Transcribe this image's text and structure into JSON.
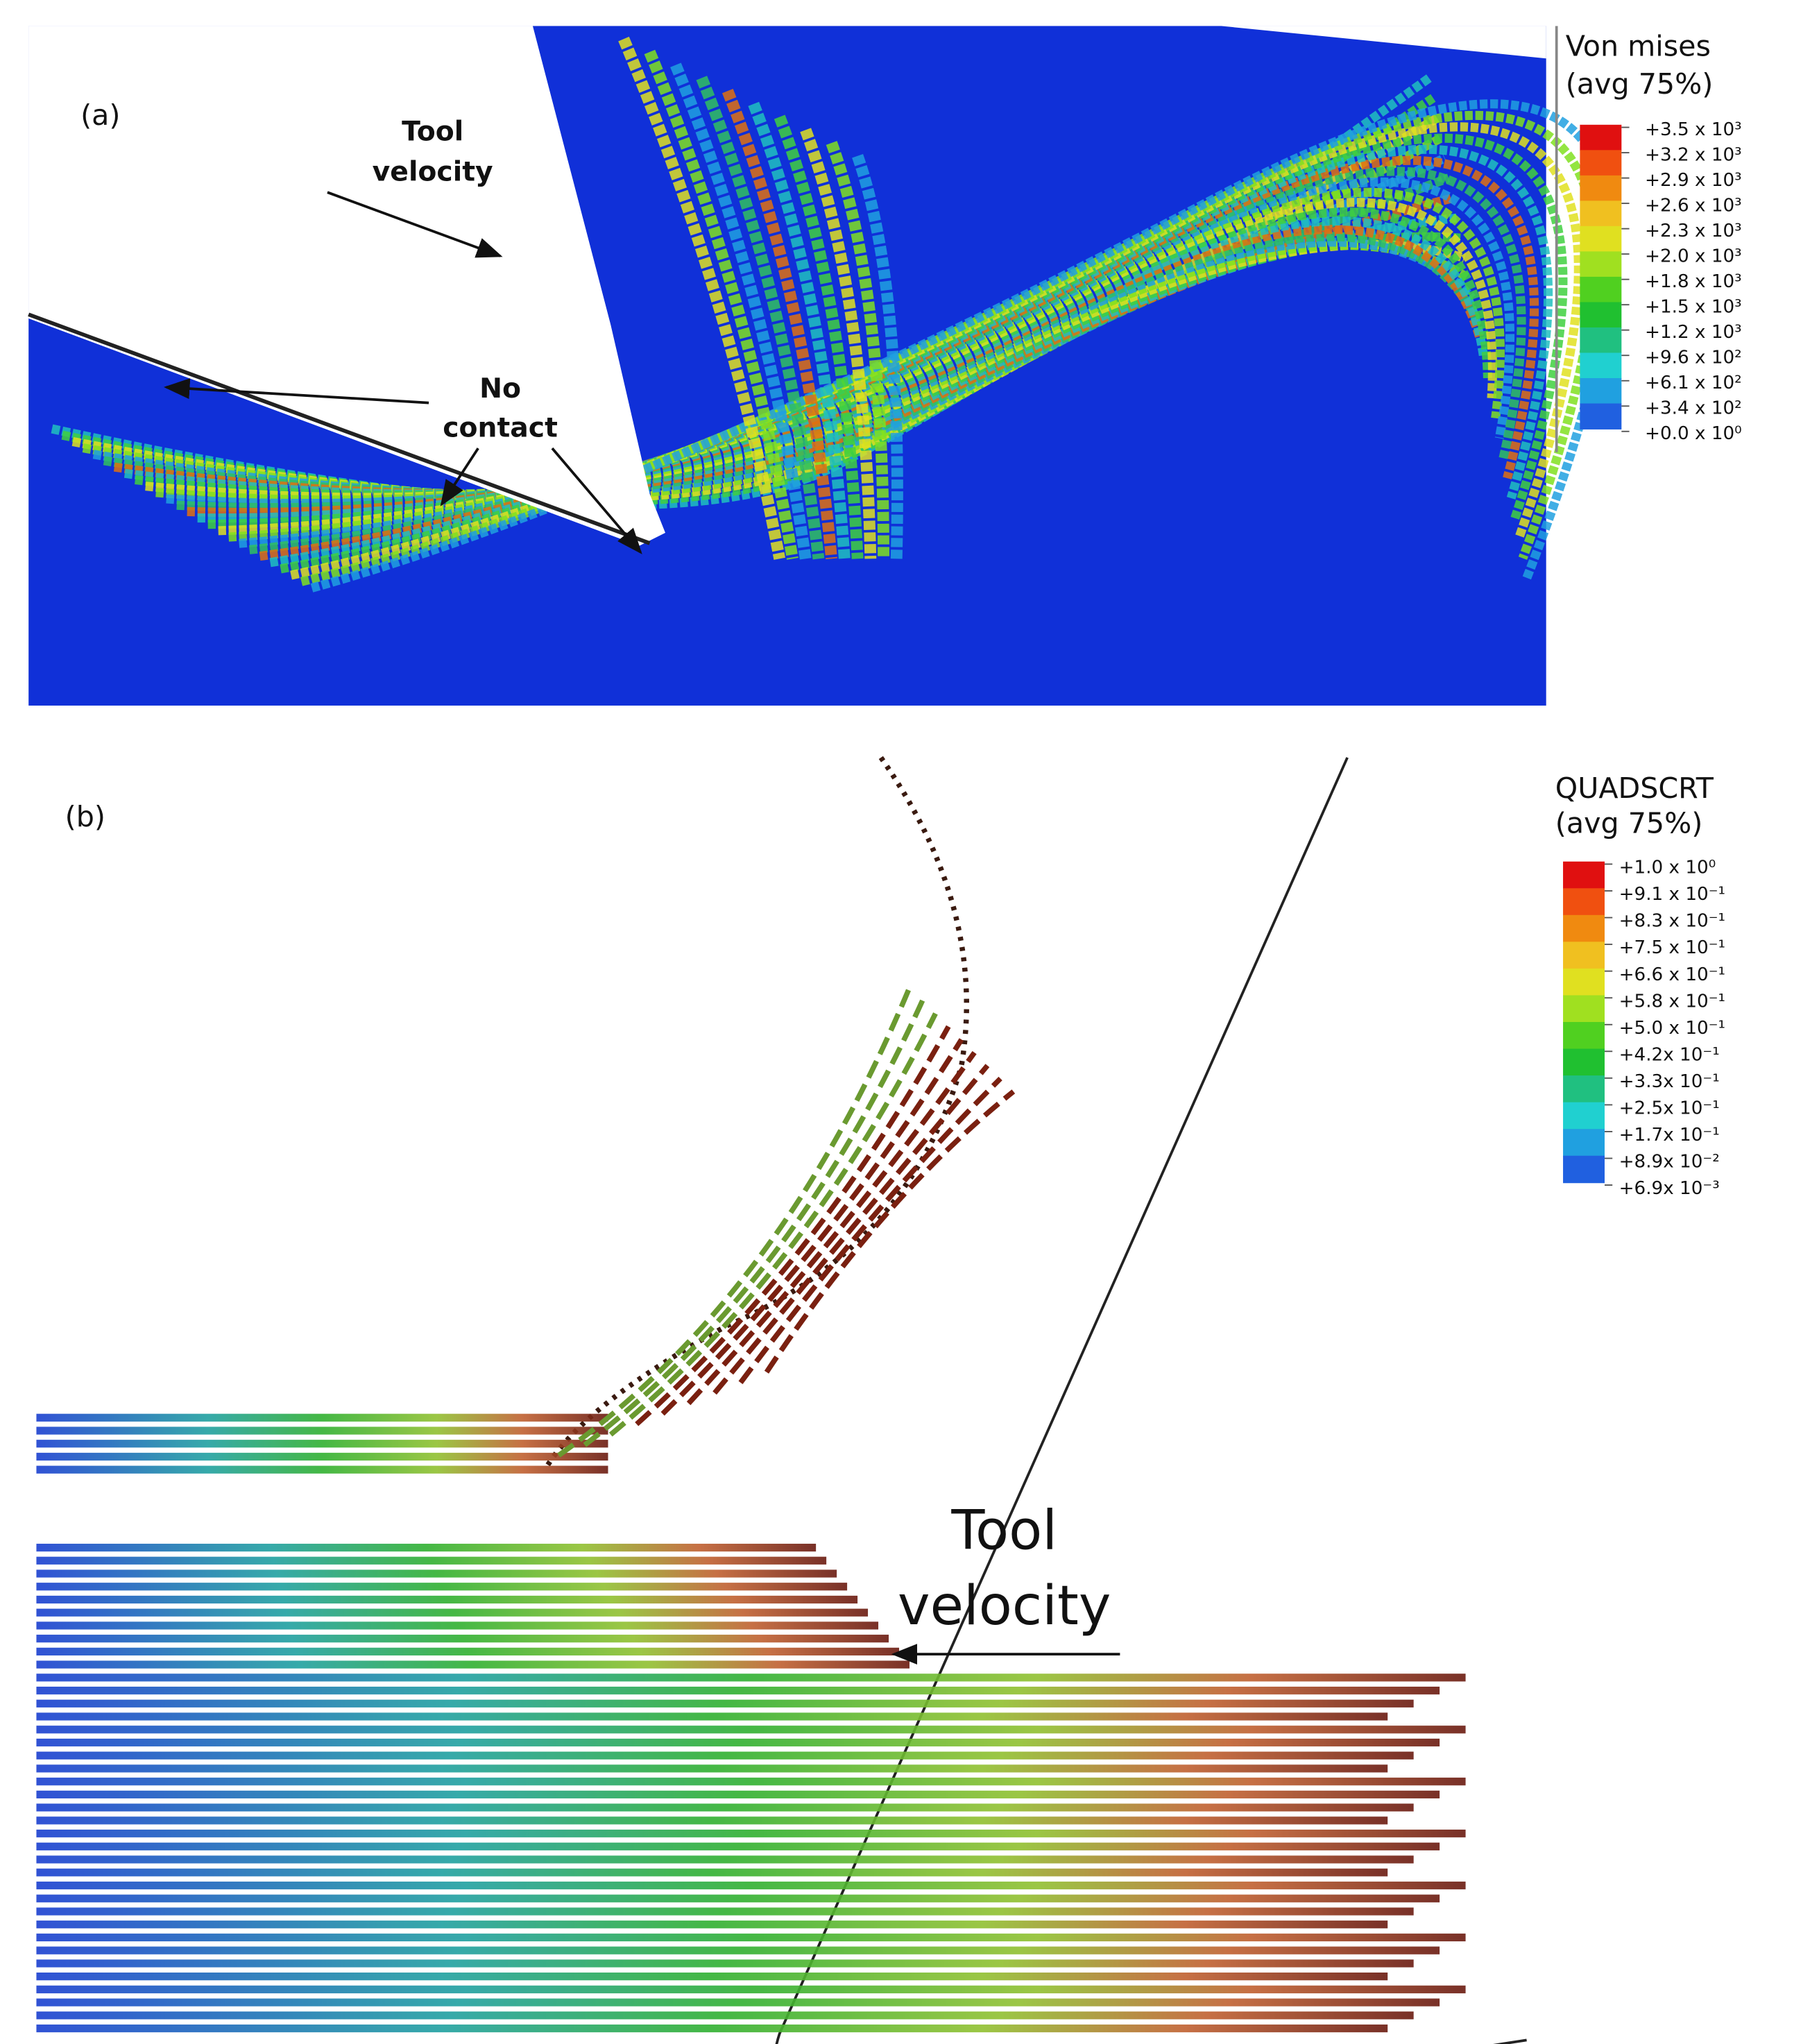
{
  "panel_a": {
    "label": "(a)",
    "annotations": {
      "tool_velocity": [
        "Tool",
        "velocity"
      ],
      "no_contact": [
        "No",
        "contact"
      ]
    },
    "legend": {
      "title": [
        "Von mises",
        "(avg 75%)"
      ],
      "labels": [
        "+3.5 x 10³",
        "+3.2 x 10³",
        "+2.9 x 10³",
        "+2.6 x 10³",
        "+2.3 x 10³",
        "+2.0 x 10³",
        "+1.8 x 10³",
        "+1.5 x 10³",
        "+1.2 x 10³",
        "+9.6 x 10²",
        "+6.1 x 10²",
        "+3.4 x 10²",
        "+0.0 x 10⁰"
      ]
    }
  },
  "panel_b": {
    "label": "(b)",
    "annotations": {
      "tool_velocity": [
        "Tool",
        "velocity"
      ]
    },
    "legend": {
      "title": [
        "QUADSCRT",
        "(avg 75%)"
      ],
      "labels": [
        "+1.0 x 10⁰",
        "+9.1 x 10⁻¹",
        "+8.3 x 10⁻¹",
        "+7.5 x 10⁻¹",
        "+6.6 x 10⁻¹",
        "+5.8 x 10⁻¹",
        "+5.0 x 10⁻¹",
        "+4.2x 10⁻¹",
        "+3.3x 10⁻¹",
        "+2.5x 10⁻¹",
        "+1.7x 10⁻¹",
        "+8.9x 10⁻²",
        "+6.9x 10⁻³"
      ]
    }
  }
}
